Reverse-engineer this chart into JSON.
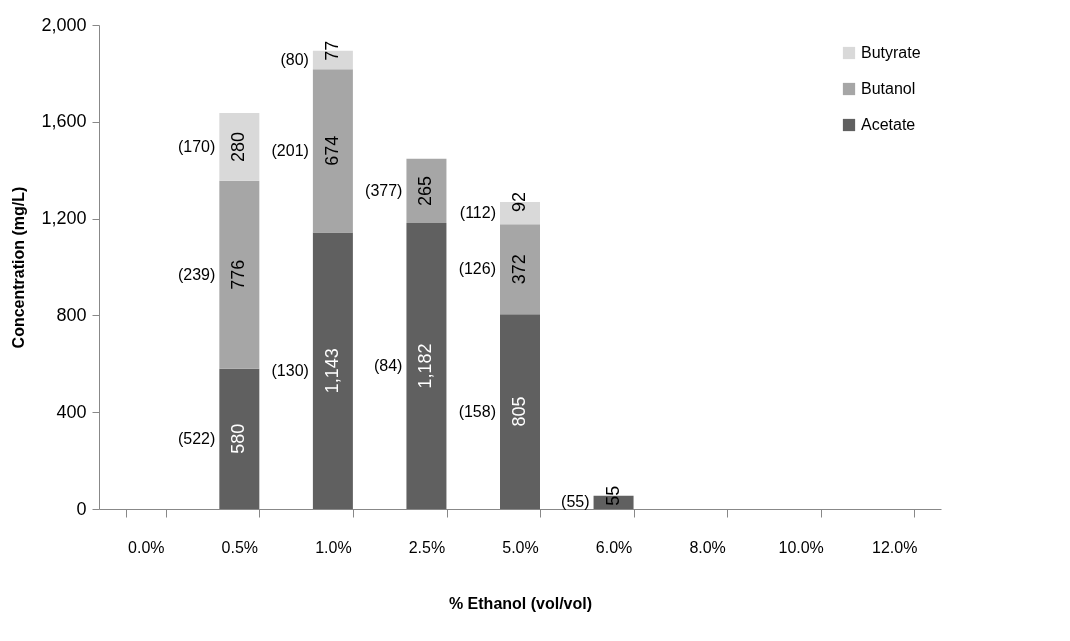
{
  "chart_data": {
    "type": "bar",
    "stacked": true,
    "xlabel": "% Ethanol (vol/vol)",
    "ylabel": "Concentration (mg/L)",
    "categories": [
      "0.0%",
      "0.5%",
      "1.0%",
      "2.5%",
      "5.0%",
      "6.0%",
      "8.0%",
      "10.0%",
      "12.0%"
    ],
    "series": [
      {
        "name": "Acetate",
        "color": "#606060",
        "values": [
          0,
          580,
          1143,
          1182,
          805,
          55,
          0,
          0,
          0
        ],
        "value_labels": [
          null,
          "580",
          "1,143",
          "1,182",
          "805",
          "55",
          null,
          null,
          null
        ]
      },
      {
        "name": "Butanol",
        "color": "#a6a6a6",
        "values": [
          0,
          776,
          674,
          265,
          372,
          0,
          0,
          0,
          0
        ],
        "value_labels": [
          null,
          "776",
          "674",
          "265",
          "372",
          null,
          null,
          null,
          null
        ]
      },
      {
        "name": "Butyrate",
        "color": "#d9d9d9",
        "values": [
          0,
          280,
          77,
          0,
          92,
          0,
          0,
          0,
          0
        ],
        "value_labels": [
          null,
          "280",
          "77",
          null,
          "92",
          null,
          null,
          null,
          null
        ]
      }
    ],
    "ylim": [
      0,
      2000
    ],
    "yticks": [
      0,
      400,
      800,
      {
        "value": 1200,
        "label": "1,200"
      },
      {
        "value": 1600,
        "label": "1,600"
      },
      {
        "value": 2000,
        "label": "2,000"
      }
    ],
    "grid": false,
    "legend": "top right",
    "annotations": [
      "(522)",
      "(239)",
      "(170)",
      "(130)",
      "(201)",
      "(80)",
      "(84)",
      "(377)",
      "(158)",
      "(126)",
      "(112)",
      "(55)"
    ]
  }
}
